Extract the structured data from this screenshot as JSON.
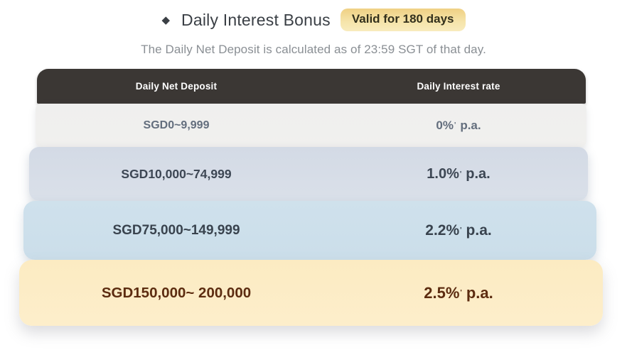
{
  "header": {
    "diamond_icon": "◆",
    "title": "Daily Interest Bonus",
    "badge": "Valid for 180 days",
    "subtitle": "The Daily Net Deposit is calculated as of 23:59 SGT of that day."
  },
  "table": {
    "columns": {
      "deposit": "Daily Net Deposit",
      "rate": "Daily Interest rate"
    },
    "footnote_marker": "'",
    "rows": [
      {
        "deposit": "SGD0~9,999",
        "rate": "0%",
        "suffix": "p.a."
      },
      {
        "deposit": "SGD10,000~74,999",
        "rate": "1.0%",
        "suffix": "p.a."
      },
      {
        "deposit": "SGD75,000~149,999",
        "rate": "2.2%",
        "suffix": "p.a."
      },
      {
        "deposit": "SGD150,000~ 200,000",
        "rate": "2.5%",
        "suffix": "p.a."
      }
    ]
  },
  "colors": {
    "header_row_bg": "#3b3734",
    "tier1_bg": "#f0f0ee",
    "tier2_bg": "#d4dbe6",
    "tier3_bg": "#cddfeb",
    "tier4_bg": "#fcedc6",
    "tier4_text": "#5c2c10",
    "badge_gradient_top": "#efd084",
    "badge_gradient_bottom": "#f8ebbd",
    "title_text": "#3a3f45",
    "subtitle_text": "#8a8f94",
    "header_text": "#ffffff"
  }
}
